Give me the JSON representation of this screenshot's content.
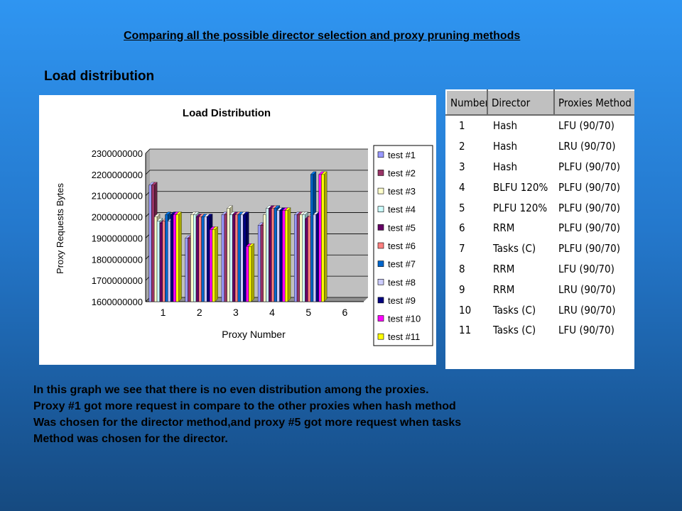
{
  "heading": "Comparing all the possible director selection and proxy pruning methods",
  "section_title": "Load distribution",
  "description": [
    "In this graph we see that there is no even distribution among the proxies.",
    "Proxy #1 got more request in compare to the other proxies when hash method",
    "Was chosen for the director method,and proxy #5 got more request when tasks",
    "Method was chosen for the director."
  ],
  "table": {
    "headers": [
      "Number",
      "Director",
      "Proxies Method"
    ],
    "rows": [
      [
        "1",
        "Hash",
        "LFU (90/70)"
      ],
      [
        "2",
        "Hash",
        "LRU (90/70)"
      ],
      [
        "3",
        "Hash",
        "PLFU (90/70)"
      ],
      [
        "4",
        "BLFU 120%",
        "PLFU (90/70)"
      ],
      [
        "5",
        "PLFU 120%",
        "PLFU (90/70)"
      ],
      [
        "6",
        "RRM",
        "PLFU (90/70)"
      ],
      [
        "7",
        "Tasks (C)",
        "PLFU (90/70)"
      ],
      [
        "8",
        "RRM",
        "LFU (90/70)"
      ],
      [
        "9",
        "RRM",
        "LRU (90/70)"
      ],
      [
        "10",
        "Tasks (C)",
        "LRU (90/70)"
      ],
      [
        "11",
        "Tasks (C)",
        "LFU (90/70)"
      ]
    ]
  },
  "chart_data": {
    "type": "bar",
    "title": "Load Distribution",
    "xlabel": "Proxy Number",
    "ylabel": "Proxy Requests Bytes",
    "categories": [
      "1",
      "2",
      "3",
      "4",
      "5",
      "6"
    ],
    "ylim": [
      1600000000,
      2300000000
    ],
    "yticks": [
      1600000000,
      1700000000,
      1800000000,
      1900000000,
      2000000000,
      2100000000,
      2200000000,
      2300000000
    ],
    "ytick_labels": [
      "1600000000",
      "1700000000",
      "1800000000",
      "1900000000",
      "2000000000",
      "2100000000",
      "2200000000",
      "2300000000"
    ],
    "grid": "horizontal",
    "legend": "right",
    "series": [
      {
        "name": "test #1",
        "color": "#9999ff",
        "values": [
          2150000000,
          1900000000,
          2010000000,
          1960000000,
          2010000000,
          null
        ]
      },
      {
        "name": "test #2",
        "color": "#993366",
        "values": [
          2150000000,
          1900000000,
          2010000000,
          1960000000,
          2010000000,
          null
        ]
      },
      {
        "name": "test #3",
        "color": "#ffffcc",
        "values": [
          2000000000,
          2010000000,
          2040000000,
          2010000000,
          2010000000,
          null
        ]
      },
      {
        "name": "test #4",
        "color": "#ccffff",
        "values": [
          1980000000,
          2010000000,
          2010000000,
          2040000000,
          2010000000,
          null
        ]
      },
      {
        "name": "test #5",
        "color": "#660066",
        "values": [
          1970000000,
          2000000000,
          2010000000,
          2040000000,
          1990000000,
          null
        ]
      },
      {
        "name": "test #6",
        "color": "#ff8080",
        "values": [
          1980000000,
          2000000000,
          2010000000,
          2040000000,
          2000000000,
          null
        ]
      },
      {
        "name": "test #7",
        "color": "#0066cc",
        "values": [
          2010000000,
          2000000000,
          2010000000,
          2040000000,
          2200000000,
          null
        ]
      },
      {
        "name": "test #8",
        "color": "#ccccff",
        "values": [
          1980000000,
          2000000000,
          2010000000,
          2030000000,
          2010000000,
          null
        ]
      },
      {
        "name": "test #9",
        "color": "#000080",
        "values": [
          2010000000,
          2000000000,
          2010000000,
          2030000000,
          2010000000,
          null
        ]
      },
      {
        "name": "test #10",
        "color": "#ff00ff",
        "values": [
          2010000000,
          1940000000,
          1860000000,
          2030000000,
          2200000000,
          null
        ]
      },
      {
        "name": "test #11",
        "color": "#ffff00",
        "values": [
          2010000000,
          1940000000,
          1860000000,
          2030000000,
          2200000000,
          null
        ]
      }
    ]
  }
}
